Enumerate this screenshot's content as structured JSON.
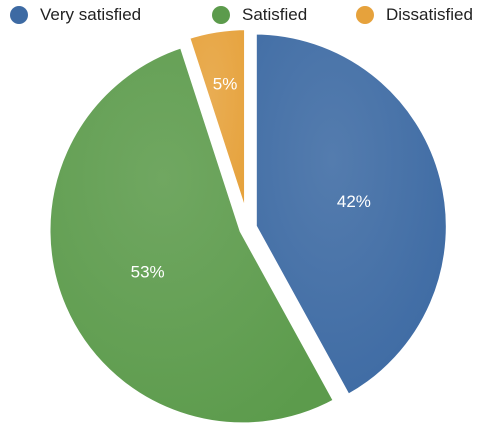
{
  "chart_data": {
    "type": "pie",
    "title": "",
    "categories": [
      "Very satisfied",
      "Satisfied",
      "Dissatisfied"
    ],
    "values": [
      42,
      53,
      5
    ],
    "value_labels": [
      "42%",
      "53%",
      "5%"
    ],
    "colors": [
      "#3d6aa3",
      "#5c9b4c",
      "#e6a23c"
    ],
    "legend_position": "top",
    "exploded": true,
    "start_angle": "12 o'clock, clockwise"
  }
}
